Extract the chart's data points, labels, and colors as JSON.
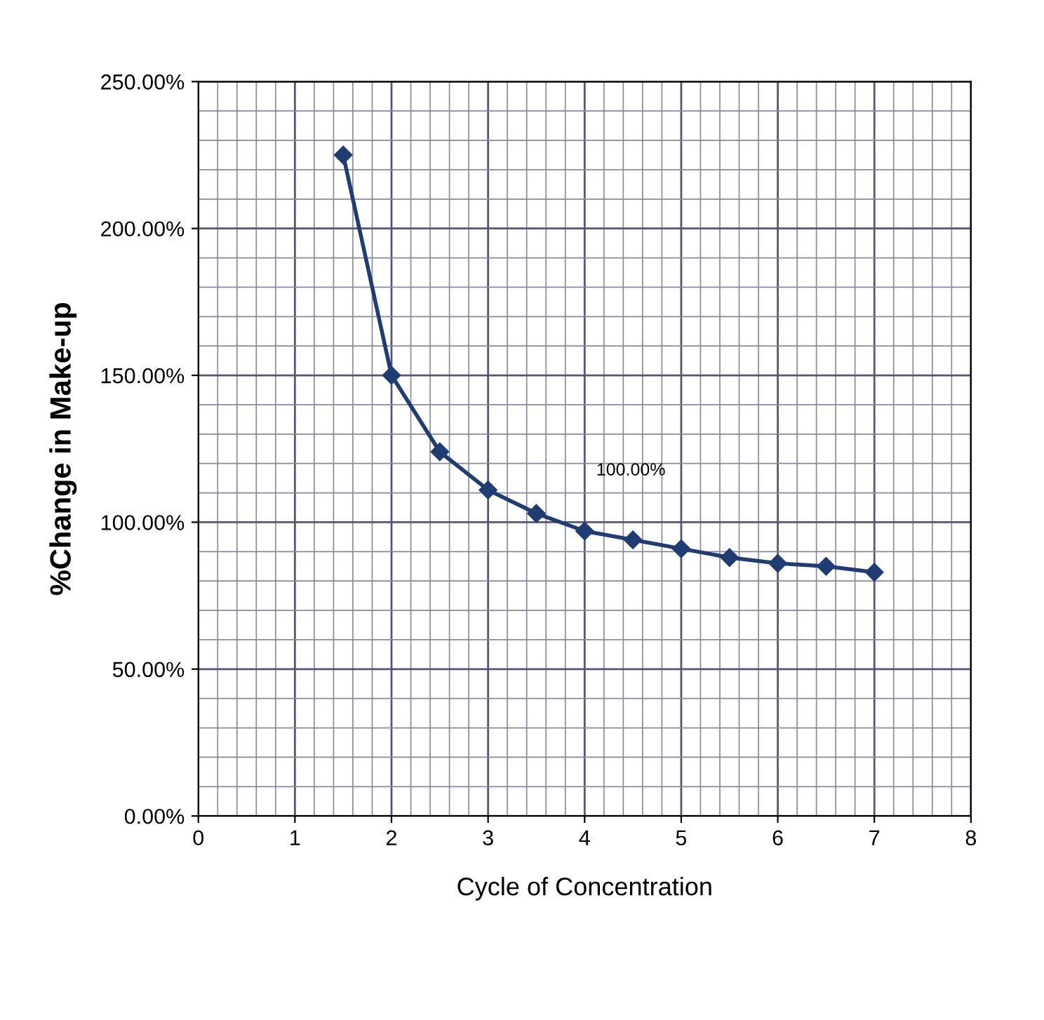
{
  "chart_data": {
    "type": "line",
    "xlabel": "Cycle of Concentration",
    "ylabel": "%Change in Make-up",
    "x": [
      1.5,
      2,
      2.5,
      3,
      3.5,
      4,
      4.5,
      5,
      5.5,
      6,
      6.5,
      7
    ],
    "series": [
      {
        "color": "#1f3c73",
        "values": [
          225,
          150,
          124,
          111,
          103,
          97,
          94,
          91,
          88,
          86,
          85,
          83
        ]
      }
    ],
    "xlim": [
      0,
      8
    ],
    "xticks": [
      0,
      1,
      2,
      3,
      4,
      5,
      6,
      7,
      8
    ],
    "ylim": [
      0,
      250
    ],
    "yticks": [
      {
        "value": 0,
        "label": "0.00%"
      },
      {
        "value": 50,
        "label": "50.00%"
      },
      {
        "value": 100,
        "label": "100.00%"
      },
      {
        "value": 150,
        "label": "150.00%"
      },
      {
        "value": 200,
        "label": "200.00%"
      },
      {
        "value": 250,
        "label": "250.00%"
      }
    ],
    "annotations": [
      "100.00%"
    ],
    "grid": true,
    "marker": "diamond",
    "line_style": "solid"
  }
}
